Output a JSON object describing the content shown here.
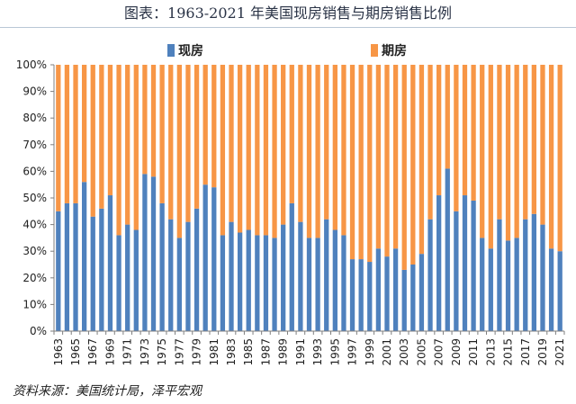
{
  "title": "图表：1963-2021 年美国现房销售与期房销售比例",
  "source": "资料来源：美国统计局，泽平宏观",
  "colors": {
    "existing": "#4f81bd",
    "new": "#f79646",
    "grid": "#d9d9d9",
    "axis": "#7f7f7f"
  },
  "chart_data": {
    "type": "bar",
    "stacked": true,
    "percent_stacked": true,
    "x": [
      1963,
      1964,
      1965,
      1966,
      1967,
      1968,
      1969,
      1970,
      1971,
      1972,
      1973,
      1974,
      1975,
      1976,
      1977,
      1978,
      1979,
      1980,
      1981,
      1982,
      1983,
      1984,
      1985,
      1986,
      1987,
      1988,
      1989,
      1990,
      1991,
      1992,
      1993,
      1994,
      1995,
      1996,
      1997,
      1998,
      1999,
      2000,
      2001,
      2002,
      2003,
      2004,
      2005,
      2006,
      2007,
      2008,
      2009,
      2010,
      2011,
      2012,
      2013,
      2014,
      2015,
      2016,
      2017,
      2018,
      2019,
      2020,
      2021
    ],
    "x_tick_labels": [
      "1963",
      "1965",
      "1967",
      "1969",
      "1971",
      "1973",
      "1975",
      "1977",
      "1979",
      "1981",
      "1983",
      "1985",
      "1987",
      "1989",
      "1991",
      "1993",
      "1995",
      "1997",
      "1999",
      "2001",
      "2003",
      "2005",
      "2007",
      "2009",
      "2011",
      "2013",
      "2015",
      "2017",
      "2019",
      "2021"
    ],
    "series": [
      {
        "name": "现房",
        "values": [
          45,
          48,
          48,
          56,
          43,
          46,
          51,
          36,
          40,
          38,
          59,
          58,
          48,
          42,
          35,
          41,
          46,
          55,
          54,
          36,
          41,
          37,
          38,
          36,
          36,
          35,
          40,
          48,
          41,
          35,
          35,
          42,
          38,
          36,
          27,
          27,
          26,
          31,
          28,
          31,
          23,
          25,
          29,
          42,
          51,
          61,
          45,
          51,
          49,
          35,
          31,
          42,
          34,
          35,
          42,
          44,
          40,
          31,
          30
        ]
      },
      {
        "name": "期房",
        "values": [
          55,
          52,
          52,
          44,
          57,
          54,
          49,
          64,
          60,
          62,
          41,
          42,
          52,
          58,
          65,
          59,
          54,
          45,
          46,
          64,
          59,
          63,
          62,
          64,
          64,
          65,
          60,
          52,
          59,
          65,
          65,
          58,
          62,
          64,
          73,
          73,
          74,
          69,
          72,
          69,
          77,
          75,
          71,
          58,
          49,
          39,
          55,
          49,
          51,
          65,
          69,
          58,
          66,
          65,
          58,
          56,
          60,
          69,
          70
        ]
      }
    ],
    "y_ticks": [
      "0%",
      "10%",
      "20%",
      "30%",
      "40%",
      "50%",
      "60%",
      "70%",
      "80%",
      "90%",
      "100%"
    ],
    "ylim": [
      0,
      100
    ],
    "legend_position": "top",
    "grid": false
  }
}
